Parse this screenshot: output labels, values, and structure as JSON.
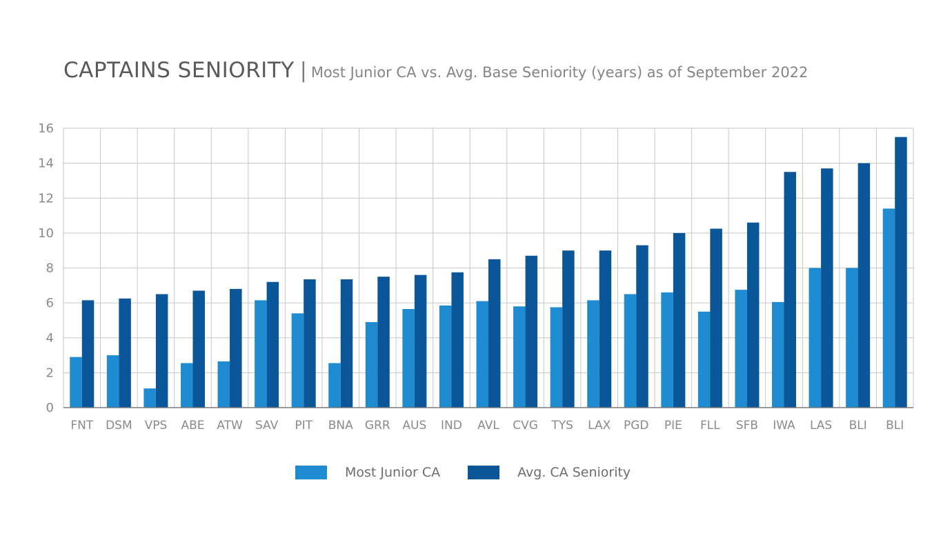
{
  "colors": {
    "most_junior": "#1f8bd1",
    "avg_seniority": "#0a5698",
    "grid": "#c6c6c6",
    "axis": "#7a7a7a"
  },
  "chart_data": {
    "type": "bar",
    "title": "CAPTAINS SENIORITY",
    "separator": "|",
    "subtitle": "Most Junior CA vs. Avg. Base Seniority (years) as of September 2022",
    "xlabel": "",
    "ylabel": "",
    "ylim": [
      0,
      16
    ],
    "yticks": [
      0,
      2,
      4,
      6,
      8,
      10,
      12,
      14,
      16
    ],
    "grid": true,
    "legend_position": "bottom-center",
    "categories": [
      "FNT",
      "DSM",
      "VPS",
      "ABE",
      "ATW",
      "SAV",
      "PIT",
      "BNA",
      "GRR",
      "AUS",
      "IND",
      "AVL",
      "CVG",
      "TYS",
      "LAX",
      "PGD",
      "PIE",
      "FLL",
      "SFB",
      "IWA",
      "LAS",
      "BLI",
      "BLI"
    ],
    "series": [
      {
        "name": "Most Junior CA",
        "values": [
          2.9,
          3.0,
          1.1,
          2.55,
          2.65,
          6.15,
          5.4,
          2.55,
          4.9,
          5.65,
          5.85,
          6.1,
          5.8,
          5.75,
          6.15,
          6.5,
          6.6,
          5.5,
          6.75,
          6.05,
          8.0,
          8.0,
          11.4
        ]
      },
      {
        "name": "Avg. CA Seniority",
        "values": [
          6.15,
          6.25,
          6.5,
          6.7,
          6.8,
          7.2,
          7.35,
          7.35,
          7.5,
          7.6,
          7.75,
          8.5,
          8.7,
          9.0,
          9.0,
          9.3,
          10.0,
          10.25,
          10.6,
          13.5,
          13.7,
          14.0,
          15.5
        ]
      }
    ]
  }
}
